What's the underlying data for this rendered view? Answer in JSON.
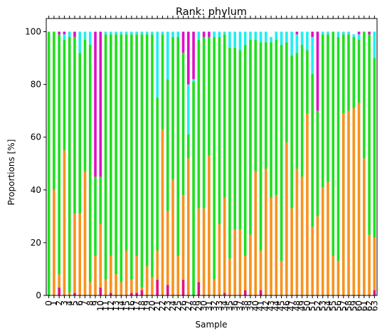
{
  "chart_data": {
    "type": "bar",
    "stacked": true,
    "title": "Rank: phylum",
    "xlabel": "Sample",
    "ylabel": "Proportions [%]",
    "ylim": [
      0,
      105
    ],
    "yticks": [
      0,
      20,
      40,
      60,
      80,
      100
    ],
    "categories": [
      "0",
      "1",
      "2",
      "3",
      "4",
      "5",
      "6",
      "7",
      "8",
      "9",
      "10",
      "11",
      "12",
      "13",
      "14",
      "15",
      "16",
      "17",
      "18",
      "19",
      "20",
      "21",
      "22",
      "23",
      "24",
      "25",
      "26",
      "27",
      "28",
      "29",
      "30",
      "31",
      "32",
      "33",
      "34",
      "35",
      "36",
      "37",
      "38",
      "39",
      "40",
      "41",
      "42",
      "43",
      "44",
      "45",
      "46",
      "47",
      "48",
      "49",
      "50",
      "51",
      "52",
      "53",
      "54",
      "55",
      "56",
      "57",
      "58",
      "59",
      "60",
      "61",
      "62",
      "63"
    ],
    "series": [
      {
        "color": "#e8107a",
        "values": [
          0,
          0,
          3,
          0,
          0,
          1,
          0,
          0,
          0,
          0,
          3,
          0,
          1,
          0,
          0,
          0,
          1,
          1,
          2,
          0,
          0,
          6,
          0,
          4,
          0,
          0,
          6,
          0,
          0,
          5,
          0,
          0,
          0,
          0,
          1,
          0,
          0,
          0,
          2,
          0,
          0,
          2,
          0,
          0,
          0,
          0,
          0,
          0,
          0,
          0,
          0,
          0,
          0,
          0,
          0,
          0,
          0,
          0,
          0,
          0,
          0,
          0,
          0,
          2
        ]
      },
      {
        "color": "#f7931e",
        "values": [
          0,
          40,
          5,
          55,
          1,
          30,
          31,
          47,
          5,
          15,
          24,
          6,
          14,
          8,
          5,
          17,
          5,
          14,
          1,
          11,
          7,
          11,
          63,
          28,
          44,
          15,
          32,
          52,
          0,
          28,
          33,
          53,
          6,
          27,
          36,
          14,
          25,
          25,
          13,
          23,
          47,
          15,
          48,
          37,
          38,
          13,
          58,
          33,
          48,
          45,
          69,
          26,
          30,
          41,
          43,
          15,
          13,
          69,
          70,
          71,
          73,
          52,
          23,
          20
        ]
      },
      {
        "color": "#1fe01f",
        "values": [
          100,
          60,
          91,
          42,
          97,
          67,
          61,
          50,
          90,
          30,
          18,
          93,
          84,
          91,
          94,
          82,
          93,
          84,
          96,
          88,
          92,
          58,
          36,
          50,
          54,
          83,
          54,
          9,
          81,
          64,
          65,
          45,
          92,
          71,
          62,
          80,
          69,
          68,
          80,
          74,
          50,
          79,
          48,
          59,
          59,
          82,
          38,
          58,
          44,
          50,
          24,
          58,
          40,
          58,
          56,
          85,
          85,
          30,
          29,
          27,
          24,
          48,
          76,
          68
        ]
      },
      {
        "color": "#1ef0f0",
        "values": [
          0,
          0,
          0,
          2,
          2,
          0,
          8,
          3,
          5,
          0,
          0,
          1,
          1,
          1,
          1,
          1,
          1,
          1,
          1,
          1,
          1,
          25,
          1,
          18,
          2,
          2,
          0,
          19,
          1,
          3,
          0,
          0,
          2,
          2,
          1,
          6,
          6,
          7,
          5,
          3,
          3,
          4,
          4,
          2,
          3,
          5,
          4,
          9,
          7,
          5,
          7,
          14,
          0,
          1,
          1,
          0,
          2,
          1,
          1,
          1,
          2,
          0,
          0,
          10
        ]
      },
      {
        "color": "#e010c8",
        "values": [
          0,
          0,
          1,
          1,
          0,
          2,
          0,
          0,
          0,
          55,
          55,
          0,
          0,
          0,
          0,
          0,
          0,
          0,
          0,
          0,
          0,
          0,
          0,
          0,
          0,
          0,
          8,
          20,
          18,
          0,
          2,
          2,
          0,
          0,
          0,
          0,
          0,
          0,
          0,
          0,
          0,
          0,
          0,
          0,
          0,
          0,
          0,
          0,
          1,
          0,
          0,
          2,
          30,
          0,
          0,
          0,
          0,
          0,
          0,
          0,
          1,
          0,
          1,
          0
        ]
      }
    ]
  }
}
